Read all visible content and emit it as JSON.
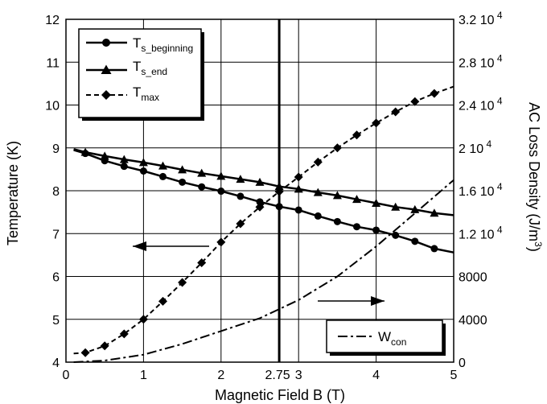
{
  "chart_data": {
    "type": "line",
    "title": "",
    "xlabel": "Magnetic Field B (T)",
    "ylabel": "Temperature (K)",
    "y2label_main": "AC Loss Density (J/m",
    "y2label_sup": "3",
    "y2label_close": ")",
    "xlim": [
      0,
      5
    ],
    "ylim": [
      4,
      12
    ],
    "y2lim": [
      0,
      32000
    ],
    "grid": true,
    "x_ticks": [
      "0",
      "1",
      "2",
      "3",
      "4",
      "5"
    ],
    "x_marker_label": "2.75",
    "x_marker_value": 2.75,
    "y_ticks": [
      "4",
      "5",
      "6",
      "7",
      "8",
      "9",
      "10",
      "11",
      "12"
    ],
    "y2_ticks": [
      {
        "main": "0",
        "exp": ""
      },
      {
        "main": "4000",
        "exp": ""
      },
      {
        "main": "8000",
        "exp": ""
      },
      {
        "main": "1.2 10",
        "exp": "4"
      },
      {
        "main": "1.6 10",
        "exp": "4"
      },
      {
        "main": "2 10",
        "exp": "4"
      },
      {
        "main": "2.4 10",
        "exp": "4"
      },
      {
        "main": "2.8 10",
        "exp": "4"
      },
      {
        "main": "3.2 10",
        "exp": "4"
      }
    ],
    "legend_top": [
      {
        "name": "T",
        "sub": "s_beginning",
        "marker": "circle",
        "dash": "solid"
      },
      {
        "name": "T",
        "sub": "s_end",
        "marker": "triangle",
        "dash": "solid"
      },
      {
        "name": "T",
        "sub": "max",
        "marker": "diamond",
        "dash": "dashed"
      }
    ],
    "legend_bottom": [
      {
        "name": "W",
        "sub": "con",
        "marker": "none",
        "dash": "dashdot"
      }
    ],
    "series": [
      {
        "name": "T_s_beginning",
        "axis": "left",
        "marker": "circle",
        "dash": "solid",
        "x": [
          0.1,
          0.25,
          0.5,
          0.75,
          1.0,
          1.25,
          1.5,
          1.75,
          2.0,
          2.25,
          2.5,
          2.75,
          3.0,
          3.25,
          3.5,
          3.75,
          4.0,
          4.25,
          4.5,
          4.75,
          5.0
        ],
        "values": [
          8.95,
          8.87,
          8.7,
          8.57,
          8.46,
          8.33,
          8.2,
          8.09,
          7.99,
          7.87,
          7.74,
          7.63,
          7.55,
          7.41,
          7.28,
          7.16,
          7.08,
          6.96,
          6.82,
          6.65,
          6.56
        ],
        "marker_x": [
          0.25,
          0.5,
          0.75,
          1.0,
          1.25,
          1.5,
          1.75,
          2.0,
          2.25,
          2.5,
          2.75,
          3.0,
          3.25,
          3.5,
          3.75,
          4.0,
          4.25,
          4.5,
          4.75
        ]
      },
      {
        "name": "T_s_end",
        "axis": "left",
        "marker": "triangle",
        "dash": "solid",
        "x": [
          0.1,
          0.25,
          0.5,
          0.75,
          1.0,
          1.25,
          1.5,
          1.75,
          2.0,
          2.25,
          2.5,
          2.75,
          3.0,
          3.25,
          3.5,
          3.75,
          4.0,
          4.25,
          4.5,
          4.75,
          5.0
        ],
        "values": [
          8.97,
          8.9,
          8.81,
          8.73,
          8.66,
          8.58,
          8.49,
          8.41,
          8.34,
          8.27,
          8.2,
          8.1,
          8.04,
          7.96,
          7.89,
          7.8,
          7.71,
          7.62,
          7.56,
          7.48,
          7.43
        ],
        "marker_x": [
          0.25,
          0.5,
          0.75,
          1.0,
          1.25,
          1.5,
          1.75,
          2.0,
          2.25,
          2.5,
          2.75,
          3.0,
          3.25,
          3.5,
          3.75,
          4.0,
          4.25,
          4.5,
          4.75
        ]
      },
      {
        "name": "T_max",
        "axis": "left",
        "marker": "diamond",
        "dash": "dashed",
        "x": [
          0.1,
          0.25,
          0.5,
          0.75,
          1.0,
          1.25,
          1.5,
          1.75,
          2.0,
          2.25,
          2.5,
          2.75,
          3.0,
          3.25,
          3.5,
          3.75,
          4.0,
          4.25,
          4.5,
          4.75,
          5.0
        ],
        "values": [
          4.2,
          4.22,
          4.38,
          4.66,
          5.0,
          5.42,
          5.86,
          6.32,
          6.8,
          7.23,
          7.62,
          7.98,
          8.32,
          8.67,
          9.0,
          9.3,
          9.58,
          9.84,
          10.08,
          10.27,
          10.43
        ],
        "marker_x": [
          0.25,
          0.5,
          0.75,
          1.0,
          1.25,
          1.5,
          1.75,
          2.0,
          2.25,
          2.5,
          2.75,
          3.0,
          3.25,
          3.5,
          3.75,
          4.0,
          4.25,
          4.5,
          4.75
        ]
      },
      {
        "name": "W_con",
        "axis": "right",
        "marker": "none",
        "dash": "dashdot",
        "x": [
          0.1,
          0.5,
          1.0,
          1.5,
          2.0,
          2.5,
          3.0,
          3.5,
          4.0,
          4.5,
          5.0
        ],
        "values": [
          0,
          150,
          700,
          1700,
          2900,
          4100,
          5800,
          8000,
          10800,
          13900,
          17000
        ]
      }
    ]
  }
}
